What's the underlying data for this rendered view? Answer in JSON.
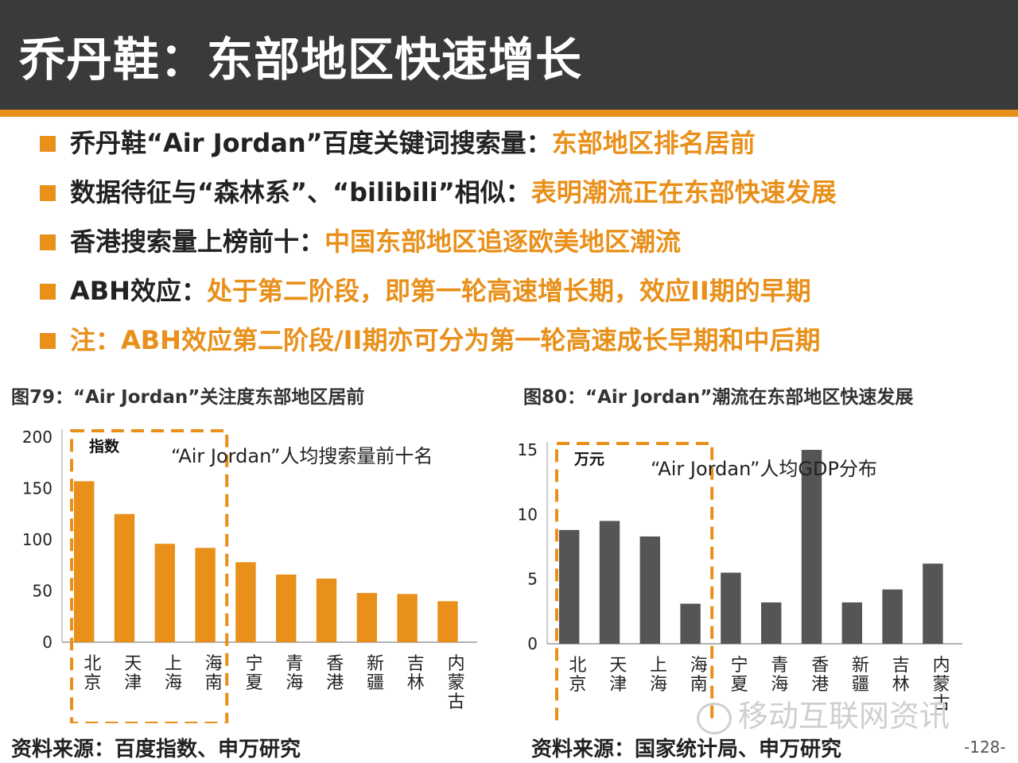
{
  "title": "乔丹鞋：东部地区快速增长",
  "bullets": [
    {
      "text": "乔丹鞋“Air Jordan”百度关键词搜索量：",
      "highlight": "东部地区排名居前"
    },
    {
      "text": "数据待征与“森林系”、“bilibili”相似：",
      "highlight": "表明潮流正在东部快速发展"
    },
    {
      "text": "香港搜索量上榜前十：",
      "highlight": "中国东部地区追逐欧美地区潮流"
    },
    {
      "text": "ABH效应：",
      "highlight": "处于第二阶段，即第一轮高速增长期，效应II期的早期"
    },
    {
      "text": "",
      "highlight": "注：ABH效应第二阶段/II期亦可分为第一轮高速成长早期和中后期"
    }
  ],
  "chart_data": [
    {
      "type": "bar",
      "caption": "图79：“Air Jordan”关注度东部地区居前",
      "title": "“Air Jordan”人均搜索量前十名",
      "unit_label": "指数",
      "categories": [
        "北京",
        "天津",
        "上海",
        "海南",
        "宁夏",
        "青海",
        "香港",
        "新疆",
        "吉林",
        "内蒙古"
      ],
      "values": [
        157,
        125,
        96,
        92,
        78,
        66,
        62,
        48,
        47,
        40
      ],
      "ylim": [
        0,
        200
      ],
      "yticks": [
        "0",
        "50",
        "100",
        "150",
        "200"
      ],
      "highlighted_count": 4,
      "color": "#e8901a",
      "source": "资料来源：百度指数、申万研究"
    },
    {
      "type": "bar",
      "caption": "图80：“Air Jordan”潮流在东部地区快速发展",
      "title": "“Air Jordan”人均GDP分布",
      "unit_label": "万元",
      "categories": [
        "北京",
        "天津",
        "上海",
        "海南",
        "宁夏",
        "青海",
        "香港",
        "新疆",
        "吉林",
        "内蒙古"
      ],
      "values": [
        8.8,
        9.5,
        8.3,
        3.1,
        5.5,
        3.2,
        15.0,
        3.2,
        4.2,
        6.2
      ],
      "ylim": [
        0,
        15
      ],
      "yticks": [
        "0",
        "5",
        "10",
        "15"
      ],
      "highlighted_count": 4,
      "color": "#555555",
      "source": "资料来源：国家统计局、申万研究"
    }
  ],
  "page_number": "-128-",
  "watermark": "移动互联网资讯",
  "colors": {
    "title_bar": "#3a3a3a",
    "accent": "#e8901a",
    "box_outline": "#e8901a"
  }
}
